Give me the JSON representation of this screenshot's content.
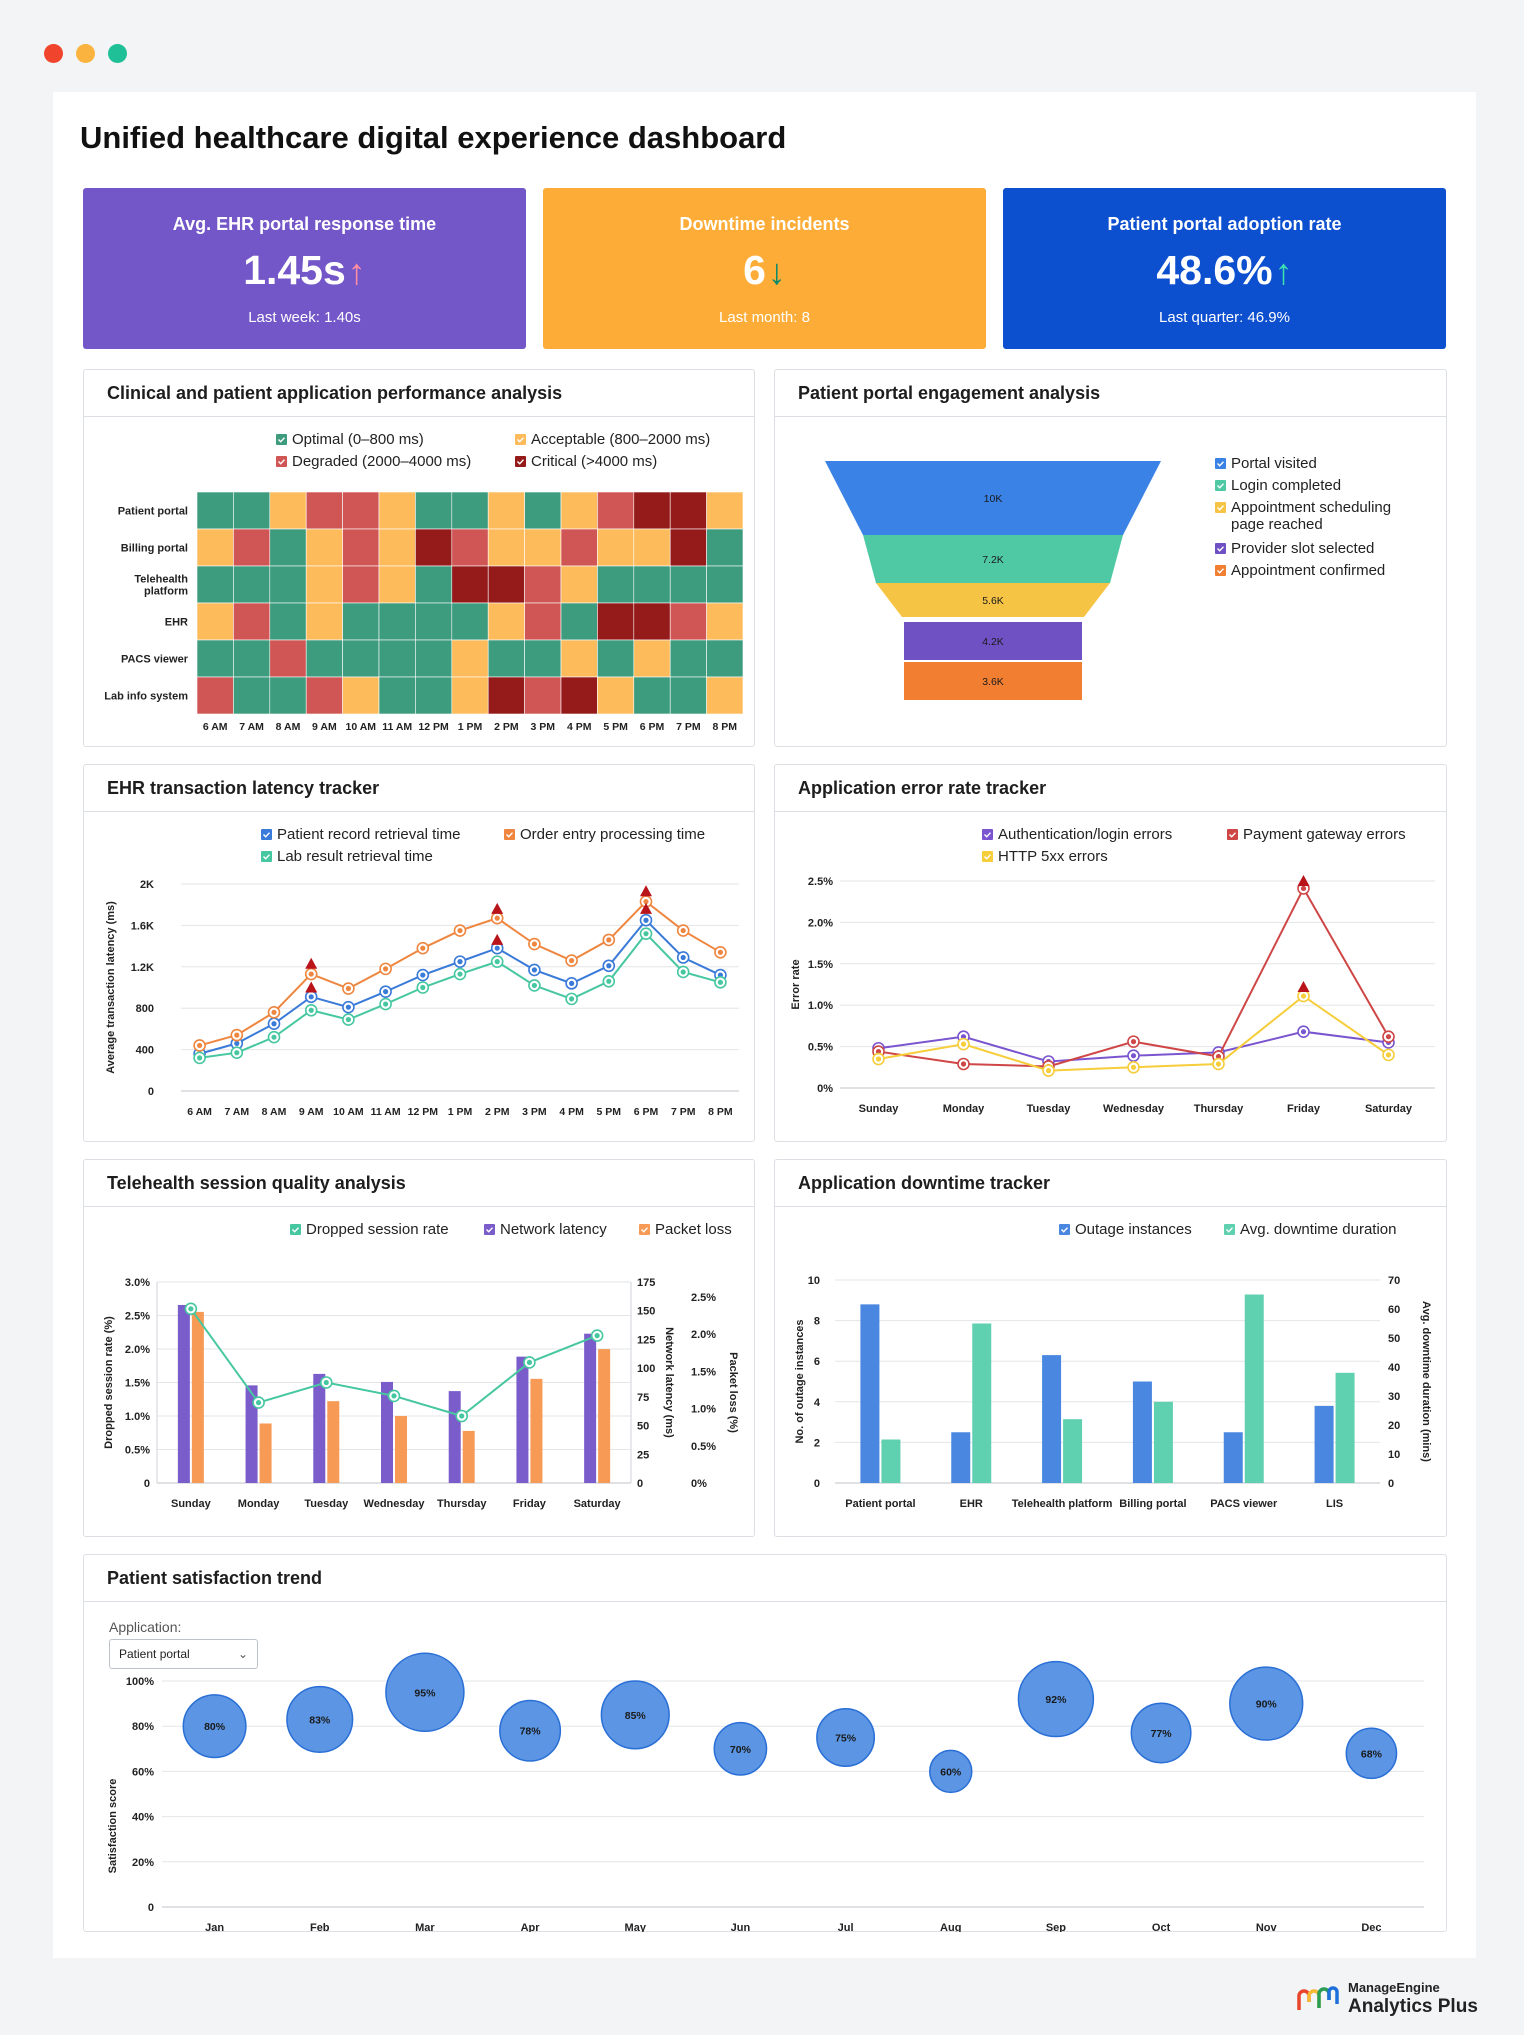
{
  "window_dots": [
    "#f0452c",
    "#fbb33f",
    "#1fbf97"
  ],
  "page_title": "Unified healthcare digital experience dashboard",
  "kpis": [
    {
      "title": "Avg. EHR portal response time",
      "value": "1.45s",
      "arrow": "↑",
      "arrow_color": "#ff8fa3",
      "last": "Last week: 1.40s",
      "bg": "#7356c8"
    },
    {
      "title": "Downtime incidents",
      "value": "6",
      "arrow": "↓",
      "arrow_color": "#0b8a6b",
      "last": "Last month: 8",
      "bg": "#fdad37"
    },
    {
      "title": "Patient portal adoption rate",
      "value": "48.6%",
      "arrow": "↑",
      "arrow_color": "#3ee0b0",
      "last": "Last quarter: 46.9%",
      "bg": "#0c4fcf"
    }
  ],
  "heatmap": {
    "title": "Clinical and patient application performance analysis",
    "legend": [
      {
        "label": "Optimal (0–800 ms)",
        "color": "#3d9b7e"
      },
      {
        "label": "Acceptable (800–2000 ms)",
        "color": "#fdbb5c"
      },
      {
        "label": "Degraded (2000–4000 ms)",
        "color": "#d05555"
      },
      {
        "label": "Critical (>4000 ms)",
        "color": "#951b1b"
      }
    ],
    "rows": [
      "Patient portal",
      "Billing portal",
      "Telehealth platform",
      "EHR",
      "PACS viewer",
      "Lab info system"
    ],
    "cols": [
      "6 AM",
      "7 AM",
      "8 AM",
      "9 AM",
      "10 AM",
      "11 AM",
      "12 PM",
      "1 PM",
      "2 PM",
      "3 PM",
      "4 PM",
      "5 PM",
      "6 PM",
      "7 PM",
      "8 PM"
    ],
    "cells": [
      [
        0,
        0,
        1,
        2,
        2,
        1,
        0,
        0,
        1,
        0,
        1,
        2,
        3,
        3,
        1
      ],
      [
        1,
        2,
        0,
        1,
        2,
        1,
        3,
        2,
        1,
        1,
        2,
        1,
        1,
        3,
        0
      ],
      [
        0,
        0,
        0,
        1,
        2,
        1,
        0,
        3,
        3,
        2,
        1,
        0,
        0,
        0,
        0
      ],
      [
        1,
        2,
        0,
        1,
        0,
        0,
        0,
        0,
        1,
        2,
        0,
        3,
        3,
        2,
        1
      ],
      [
        0,
        0,
        2,
        0,
        0,
        0,
        0,
        1,
        0,
        0,
        1,
        0,
        1,
        0,
        0
      ],
      [
        2,
        0,
        0,
        2,
        1,
        0,
        0,
        1,
        3,
        2,
        3,
        1,
        0,
        0,
        1
      ]
    ]
  },
  "funnel": {
    "title": "Patient portal engagement analysis",
    "stages": [
      {
        "name": "Portal visited",
        "value": 10000,
        "label": "10K",
        "color": "#3b82e6"
      },
      {
        "name": "Login completed",
        "value": 7200,
        "label": "7.2K",
        "color": "#4fc9a4"
      },
      {
        "name": "Appointment scheduling page reached",
        "value": 5600,
        "label": "5.6K",
        "color": "#f6c445"
      },
      {
        "name": "Provider slot selected",
        "value": 4200,
        "label": "4.2K",
        "color": "#7051c4"
      },
      {
        "name": "Appointment confirmed",
        "value": 3600,
        "label": "3.6K",
        "color": "#f27e32"
      }
    ],
    "legend_lines": [
      [
        "Portal visited"
      ],
      [
        "Login completed"
      ],
      [
        "Appointment scheduling",
        "page reached"
      ],
      [
        "Provider slot selected"
      ],
      [
        "Appointment confirmed"
      ]
    ]
  },
  "ehr_latency": {
    "title": "EHR transaction latency tracker",
    "ylabel": "Average transaction latency (ms)",
    "ytick_labels": [
      "0",
      "400",
      "800",
      "1.2K",
      "1.6K",
      "2K"
    ],
    "x": [
      "6 AM",
      "7 AM",
      "8 AM",
      "9 AM",
      "10 AM",
      "11 AM",
      "12 PM",
      "1 PM",
      "2 PM",
      "3 PM",
      "4 PM",
      "5 PM",
      "6 PM",
      "7 PM",
      "8 PM"
    ],
    "series": [
      {
        "name": "Patient record retrieval time",
        "color": "#3a7ad8",
        "values": [
          360,
          460,
          650,
          910,
          810,
          960,
          1120,
          1250,
          1380,
          1170,
          1040,
          1210,
          1650,
          1290,
          1120
        ]
      },
      {
        "name": "Order entry processing time",
        "color": "#ee8640",
        "values": [
          440,
          540,
          760,
          1130,
          990,
          1180,
          1380,
          1550,
          1670,
          1420,
          1260,
          1460,
          1830,
          1550,
          1340
        ]
      },
      {
        "name": "Lab result retrieval time",
        "color": "#46c7a0",
        "values": [
          320,
          370,
          520,
          780,
          690,
          840,
          1000,
          1130,
          1250,
          1020,
          890,
          1060,
          1520,
          1150,
          1050
        ]
      }
    ],
    "alerts": [
      [
        3,
        1230
      ],
      [
        3,
        1000
      ],
      [
        8,
        1760
      ],
      [
        8,
        1460
      ],
      [
        12,
        1930
      ],
      [
        12,
        1760
      ]
    ]
  },
  "error_rate": {
    "title": "Application error rate tracker",
    "ylabel": "Error rate",
    "ytick_labels": [
      "0%",
      "0.5%",
      "1.0%",
      "1.5%",
      "2.0%",
      "2.5%"
    ],
    "x": [
      "Sunday",
      "Monday",
      "Tuesday",
      "Wednesday",
      "Thursday",
      "Friday",
      "Saturday"
    ],
    "series": [
      {
        "name": "Authentication/login errors",
        "color": "#7a55cf",
        "values": [
          0.48,
          0.62,
          0.32,
          0.39,
          0.43,
          0.68,
          0.55
        ]
      },
      {
        "name": "Payment gateway errors",
        "color": "#cf4646",
        "values": [
          0.44,
          0.29,
          0.26,
          0.56,
          0.38,
          2.41,
          0.62
        ]
      },
      {
        "name": "HTTP 5xx errors",
        "color": "#f6cd3a",
        "values": [
          0.35,
          0.53,
          0.21,
          0.25,
          0.29,
          1.11,
          0.4
        ]
      }
    ],
    "alerts": [
      [
        5,
        2.5
      ],
      [
        5,
        1.22
      ]
    ]
  },
  "telehealth": {
    "title": "Telehealth session quality analysis",
    "ylabel_left": "Dropped session rate (%)",
    "ylabel_mid": "Network latency (ms)",
    "ylabel_right": "Packet loss (%)",
    "left_ticks": [
      "0",
      "0.5%",
      "1.0%",
      "1.5%",
      "2.0%",
      "2.5%",
      "3.0%"
    ],
    "mid_ticks": [
      "0",
      "25",
      "50",
      "75",
      "100",
      "125",
      "150",
      "175"
    ],
    "right_ticks": [
      "0%",
      "0.5%",
      "1.0%",
      "1.5%",
      "2.0%",
      "2.5%"
    ],
    "x": [
      "Sunday",
      "Monday",
      "Tuesday",
      "Wednesday",
      "Thursday",
      "Friday",
      "Saturday"
    ],
    "series": [
      {
        "name": "Dropped session rate",
        "color": "#46c7a0",
        "values": [
          2.6,
          1.2,
          1.5,
          1.3,
          1.0,
          1.8,
          2.2
        ]
      },
      {
        "name": "Network latency",
        "color": "#7a5ccb",
        "values": [
          155,
          85,
          95,
          88,
          80,
          110,
          130
        ]
      },
      {
        "name": "Packet loss",
        "color": "#f79a55",
        "values": [
          2.3,
          0.8,
          1.1,
          0.9,
          0.7,
          1.4,
          1.8
        ]
      }
    ]
  },
  "downtime": {
    "title": "Application downtime tracker",
    "ylabel_left": "No. of outage instances",
    "ylabel_right": "Avg. downtime duration (mins)",
    "left_ticks": [
      "0",
      "2",
      "4",
      "6",
      "8",
      "10"
    ],
    "right_ticks": [
      "0",
      "10",
      "20",
      "30",
      "40",
      "50",
      "60",
      "70"
    ],
    "x": [
      "Patient portal",
      "EHR",
      "Telehealth platform",
      "Billing portal",
      "PACS viewer",
      "LIS"
    ],
    "series": [
      {
        "name": "Outage instances",
        "color": "#4a87e0",
        "values": [
          8.8,
          2.5,
          6.3,
          5,
          2.5,
          3.8
        ]
      },
      {
        "name": "Avg. downtime duration",
        "color": "#5fd0b0",
        "values": [
          15,
          55,
          22,
          28,
          65,
          38
        ]
      }
    ]
  },
  "satisfaction": {
    "title": "Patient satisfaction trend",
    "app_label": "Application:",
    "app_value": "Patient portal",
    "ylabel": "Satisfaction score",
    "ytick_labels": [
      "0",
      "20%",
      "40%",
      "60%",
      "80%",
      "100%"
    ],
    "x": [
      "Jan",
      "Feb",
      "Mar",
      "Apr",
      "May",
      "Jun",
      "Jul",
      "Aug",
      "Sep",
      "Oct",
      "Nov",
      "Dec"
    ],
    "values": [
      80,
      83,
      95,
      78,
      85,
      70,
      75,
      60,
      92,
      77,
      90,
      68
    ],
    "labels": [
      "80%",
      "83%",
      "95%",
      "78%",
      "85%",
      "70%",
      "75%",
      "60%",
      "92%",
      "77%",
      "90%",
      "68%"
    ],
    "color": "#5b95e3"
  },
  "brand": {
    "line1": "ManageEngine",
    "line2": "Analytics Plus"
  },
  "chart_data": [
    {
      "type": "heatmap",
      "title": "Clinical and patient application performance analysis",
      "rows": [
        "Patient portal",
        "Billing portal",
        "Telehealth platform",
        "EHR",
        "PACS viewer",
        "Lab info system"
      ],
      "cols": [
        "6 AM",
        "7 AM",
        "8 AM",
        "9 AM",
        "10 AM",
        "11 AM",
        "12 PM",
        "1 PM",
        "2 PM",
        "3 PM",
        "4 PM",
        "5 PM",
        "6 PM",
        "7 PM",
        "8 PM"
      ],
      "categories": [
        "Optimal (0–800 ms)",
        "Acceptable (800–2000 ms)",
        "Degraded (2000–4000 ms)",
        "Critical (>4000 ms)"
      ],
      "values_ref": "heatmap.cells"
    },
    {
      "type": "bar",
      "subtype": "funnel",
      "title": "Patient portal engagement analysis",
      "categories": [
        "Portal visited",
        "Login completed",
        "Appointment scheduling page reached",
        "Provider slot selected",
        "Appointment confirmed"
      ],
      "values": [
        10000,
        7200,
        5600,
        4200,
        3600
      ]
    },
    {
      "type": "line",
      "title": "EHR transaction latency tracker",
      "ylim": [
        0,
        2000
      ],
      "series_ref": "ehr_latency.series"
    },
    {
      "type": "line",
      "title": "Application error rate tracker",
      "ylim": [
        0,
        2.5
      ],
      "series_ref": "error_rate.series"
    },
    {
      "type": "bar",
      "title": "Telehealth session quality analysis",
      "series_ref": "telehealth.series"
    },
    {
      "type": "bar",
      "title": "Application downtime tracker",
      "series_ref": "downtime.series"
    },
    {
      "type": "scatter",
      "subtype": "bubble",
      "title": "Patient satisfaction trend",
      "ylim": [
        0,
        100
      ],
      "values_ref": "satisfaction.values"
    }
  ]
}
